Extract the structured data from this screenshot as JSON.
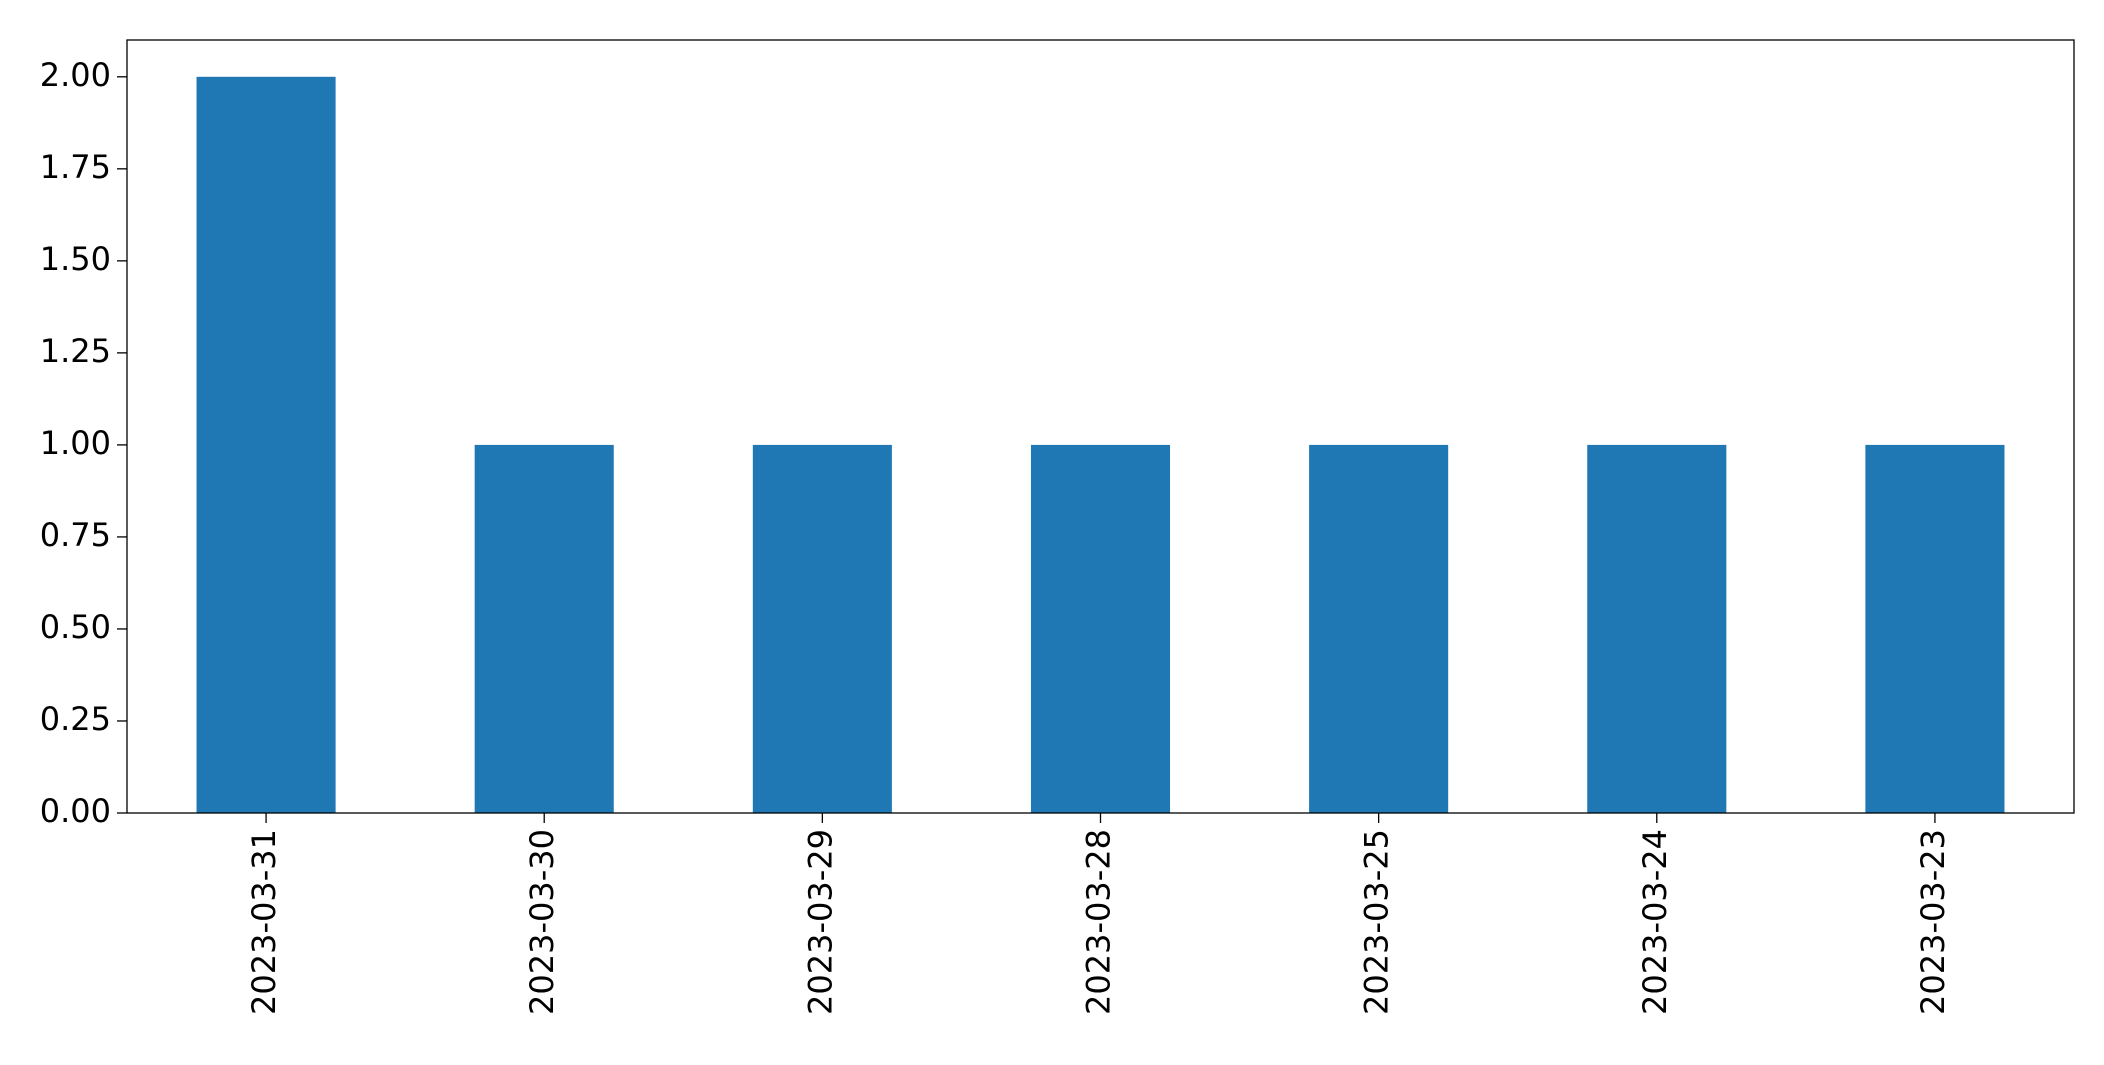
{
  "chart_data": {
    "type": "bar",
    "categories": [
      "2023-03-31",
      "2023-03-30",
      "2023-03-29",
      "2023-03-28",
      "2023-03-25",
      "2023-03-24",
      "2023-03-23"
    ],
    "values": [
      2,
      1,
      1,
      1,
      1,
      1,
      1
    ],
    "color": "#1f77b4",
    "ylim": [
      0,
      2.1
    ],
    "yticks": [
      {
        "value": 0,
        "label": "0.00"
      },
      0.25,
      {
        "value": 0.5,
        "label": "0.50"
      },
      0.75,
      {
        "value": 1,
        "label": "1.00"
      },
      1.25,
      {
        "value": 1.5,
        "label": "1.50"
      },
      1.75,
      {
        "value": 2,
        "label": "2.00"
      }
    ],
    "grid": false
  }
}
